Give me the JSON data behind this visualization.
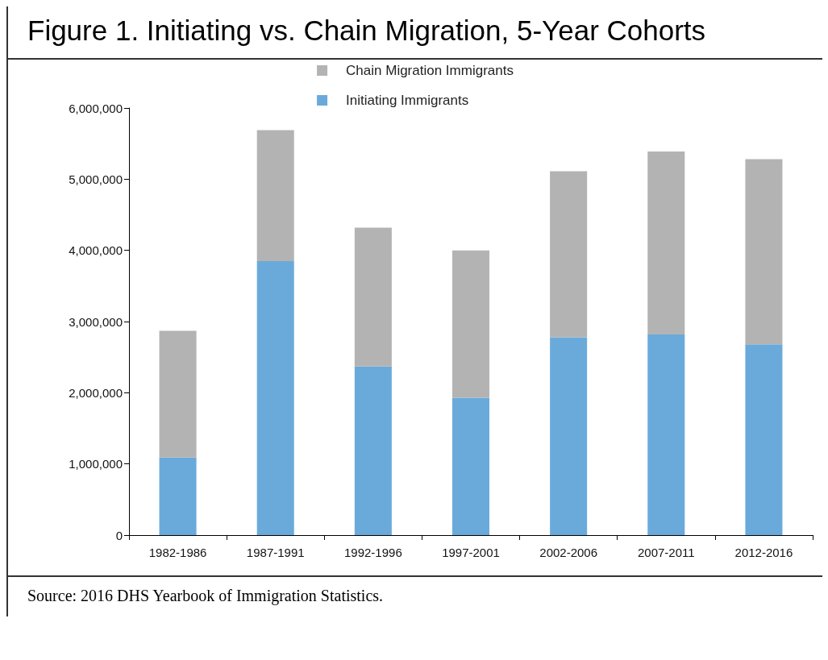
{
  "chart_data": {
    "type": "bar",
    "title": "Figure 1. Initiating vs. Chain Migration, 5-Year Cohorts",
    "categories": [
      "1982-1986",
      "1987-1991",
      "1992-1996",
      "1997-2001",
      "2002-2006",
      "2007-2011",
      "2012-2016"
    ],
    "stacked": true,
    "series": [
      {
        "name": "Initiating Immigrants",
        "color": "#6aaadb",
        "values": [
          1090000,
          3850000,
          2370000,
          1930000,
          2780000,
          2820000,
          2680000
        ]
      },
      {
        "name": "Chain Migration Immigrants",
        "color": "#b3b3b3",
        "values": [
          1780000,
          1840000,
          1950000,
          2070000,
          2330000,
          2570000,
          2600000
        ]
      }
    ],
    "ylim": [
      0,
      6000000
    ],
    "yticks": [
      0,
      {
        "value": 1000000,
        "label": "1,000,000"
      },
      {
        "value": 2000000,
        "label": "2,000,000"
      },
      {
        "value": 3000000,
        "label": "3,000,000"
      },
      {
        "value": 4000000,
        "label": "4,000,000"
      },
      {
        "value": 5000000,
        "label": "5,000,000"
      },
      {
        "value": 6000000,
        "label": "6,000,000"
      }
    ],
    "grid": false,
    "legend": "top",
    "annotations": [
      "Source: 2016 DHS Yearbook of Immigration Statistics."
    ]
  }
}
